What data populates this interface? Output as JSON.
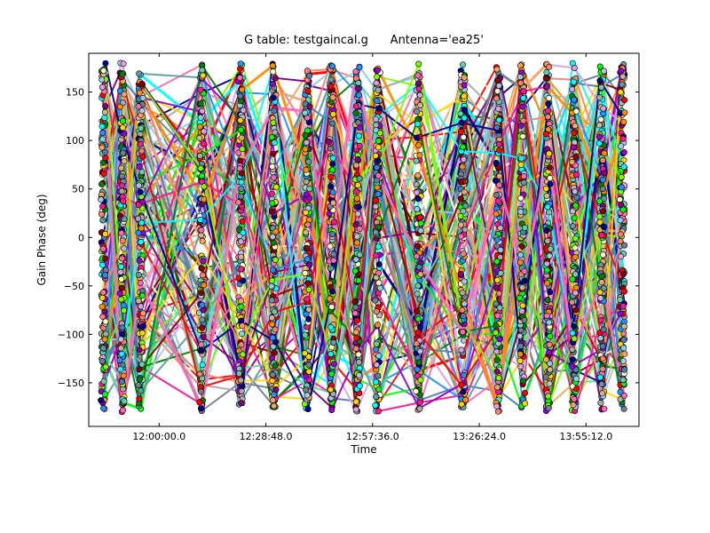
{
  "chart_data": {
    "type": "scatter",
    "title": "G table: testgaincal.g      Antenna='ea25'",
    "xlabel": "Time",
    "ylabel": "Gain Phase (deg)",
    "xlim": [
      "11:41:00",
      "14:09:30"
    ],
    "ylim": [
      -195,
      190
    ],
    "x_ticks": [
      "12:00:00.0",
      "12:28:48.0",
      "12:57:36.0",
      "13:26:24.0",
      "13:55:12.0"
    ],
    "y_ticks": [
      150,
      100,
      50,
      0,
      -50,
      -100,
      -150
    ],
    "grid": false,
    "markers": "circles connected by lines, one color per series",
    "scan_times": [
      "11:45:00",
      "11:50:00",
      "11:55:00",
      "12:11:30",
      "12:22:00",
      "12:31:00",
      "12:40:00",
      "12:46:30",
      "12:53:30",
      "12:59:00",
      "13:10:00",
      "13:22:00",
      "13:31:30",
      "13:38:00",
      "13:45:00",
      "13:52:00",
      "13:59:30",
      "14:05:00"
    ],
    "y_range_per_scan": [
      -180,
      180
    ],
    "series_colors": [
      "#8b0000",
      "#00ff00",
      "#66cdaa",
      "#708090",
      "#ff8c00",
      "#1e90ff",
      "#ff1493",
      "#9400d3",
      "#ffd700",
      "#008000",
      "#ff0000",
      "#00ffff",
      "#00008b",
      "#ff69b4",
      "#7cfc00",
      "#fa8072",
      "#87ceeb",
      "#dda0dd",
      "#d2b48c",
      "#a9a9a9",
      "#4682b4",
      "#f4a460",
      "#fffacd",
      "#800080",
      "#5f9ea0",
      "#b0c4de"
    ]
  }
}
